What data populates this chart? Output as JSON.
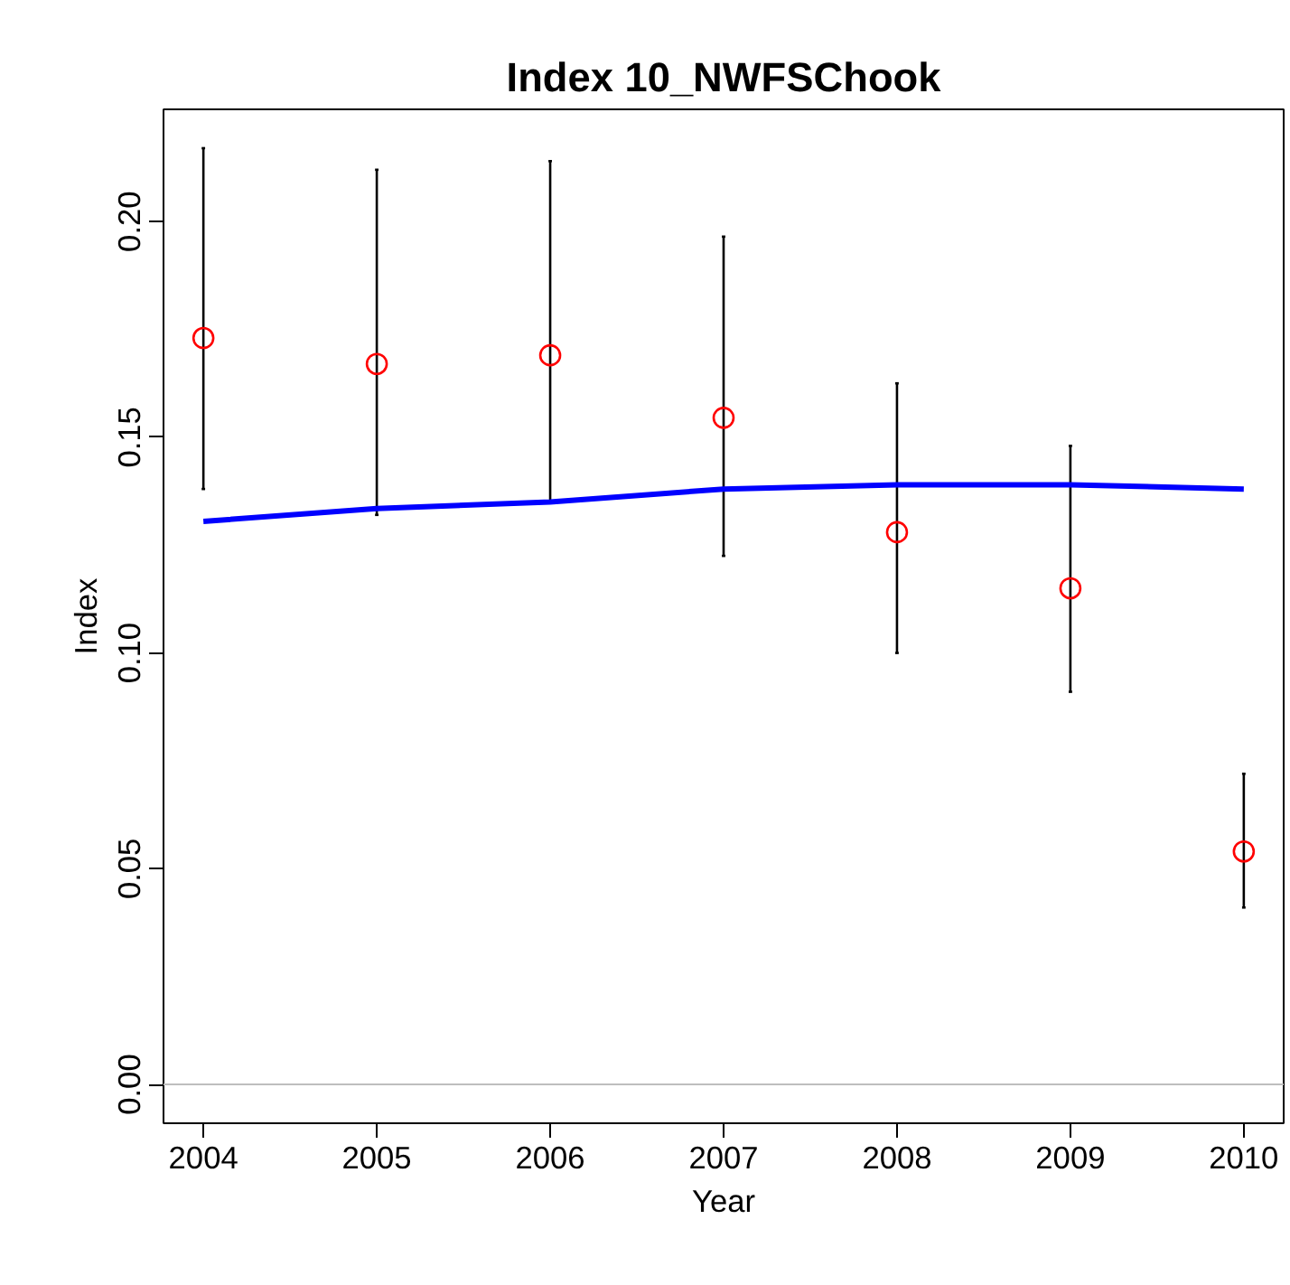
{
  "chart_data": {
    "type": "scatter",
    "title": "Index 10_NWFSChook",
    "xlabel": "Year",
    "ylabel": "Index",
    "x": [
      2004,
      2005,
      2006,
      2007,
      2008,
      2009,
      2010
    ],
    "series": [
      {
        "color": "#ff0000",
        "marker": "circle",
        "values": [
          0.173,
          0.167,
          0.169,
          0.1545,
          0.128,
          0.115,
          0.054
        ],
        "errors": [
          [
            0.138,
            0.217
          ],
          [
            0.132,
            0.212
          ],
          [
            0.135,
            0.214
          ],
          [
            0.1225,
            0.1965
          ],
          [
            0.1,
            0.1625
          ],
          [
            0.091,
            0.148
          ],
          [
            0.041,
            0.072
          ]
        ]
      },
      {
        "type": "line",
        "color": "#0000ff",
        "marker": "none",
        "values": [
          0.1305,
          0.1335,
          0.135,
          0.138,
          0.139,
          0.139,
          0.138
        ]
      }
    ],
    "xlim": [
      2003.77,
      2010.23
    ],
    "ylim": [
      -0.009,
      0.226
    ],
    "xticks": [
      2004,
      2005,
      2006,
      2007,
      2008,
      2009,
      2010
    ],
    "yticks": [
      {
        "value": 0,
        "label": "0.00"
      },
      {
        "value": 0.05,
        "label": "0.05"
      },
      {
        "value": 0.1,
        "label": "0.10"
      },
      {
        "value": 0.15,
        "label": "0.15"
      },
      {
        "value": 0.2,
        "label": "0.20"
      }
    ],
    "ref_lines": [
      {
        "axis": "y",
        "value": 0,
        "color": "#bebebe"
      }
    ],
    "grid": false
  }
}
